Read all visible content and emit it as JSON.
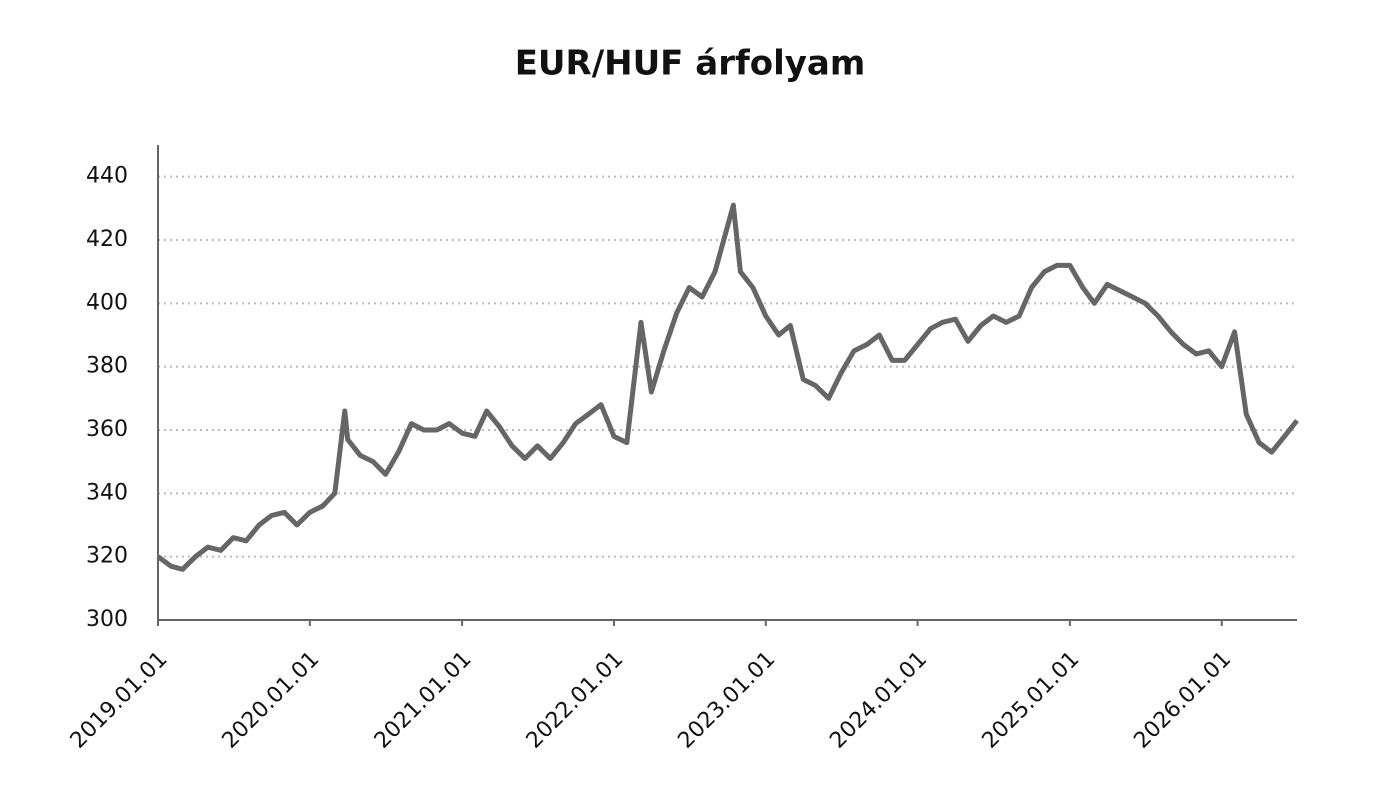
{
  "chart_data": {
    "type": "line",
    "title": "EUR/HUF árfolyam",
    "x": [
      "2019.01.01",
      "2019.02.01",
      "2019.03.01",
      "2019.04.01",
      "2019.05.01",
      "2019.06.01",
      "2019.07.01",
      "2019.08.01",
      "2019.09.01",
      "2019.10.01",
      "2019.11.01",
      "2019.12.01",
      "2020.01.01",
      "2020.02.01",
      "2020.03.01",
      "2020.03.25",
      "2020.04.01",
      "2020.05.01",
      "2020.06.01",
      "2020.07.01",
      "2020.08.01",
      "2020.09.01",
      "2020.10.01",
      "2020.11.01",
      "2020.12.01",
      "2021.01.01",
      "2021.02.01",
      "2021.03.01",
      "2021.04.01",
      "2021.05.01",
      "2021.06.01",
      "2021.07.01",
      "2021.08.01",
      "2021.09.01",
      "2021.10.01",
      "2021.11.01",
      "2021.12.01",
      "2022.01.01",
      "2022.02.01",
      "2022.03.07",
      "2022.04.01",
      "2022.05.01",
      "2022.06.01",
      "2022.07.01",
      "2022.08.01",
      "2022.09.01",
      "2022.10.15",
      "2022.11.01",
      "2022.12.01",
      "2023.01.01",
      "2023.02.01",
      "2023.03.01",
      "2023.04.01",
      "2023.05.01",
      "2023.06.01",
      "2023.07.01",
      "2023.08.01",
      "2023.09.01",
      "2023.10.01",
      "2023.11.01",
      "2023.12.01",
      "2024.01.01",
      "2024.02.01",
      "2024.03.01",
      "2024.04.01",
      "2024.05.01",
      "2024.06.01",
      "2024.07.01",
      "2024.08.01",
      "2024.09.01",
      "2024.10.01",
      "2024.11.01",
      "2024.12.01",
      "2025.01.01",
      "2025.02.01",
      "2025.03.01",
      "2025.04.01",
      "2025.05.01",
      "2025.06.01",
      "2025.07.01",
      "2025.08.01",
      "2025.09.01",
      "2025.10.01",
      "2025.11.01",
      "2025.12.01",
      "2026.01.01",
      "2026.02.01",
      "2026.03.01",
      "2026.04.01",
      "2026.05.01",
      "2026.06.01",
      "2026.07.01"
    ],
    "series": [
      {
        "name": "EUR/HUF",
        "color": "#666666",
        "values": [
          320,
          317,
          316,
          320,
          323,
          322,
          326,
          325,
          330,
          333,
          334,
          330,
          334,
          336,
          340,
          366,
          357,
          352,
          350,
          346,
          353,
          362,
          360,
          360,
          362,
          359,
          358,
          366,
          361,
          355,
          351,
          355,
          351,
          356,
          362,
          365,
          368,
          358,
          356,
          394,
          372,
          385,
          397,
          405,
          402,
          410,
          431,
          410,
          405,
          396,
          390,
          393,
          376,
          374,
          370,
          378,
          385,
          387,
          390,
          382,
          382,
          387,
          392,
          394,
          395,
          388,
          393,
          396,
          394,
          396,
          405,
          410,
          412,
          412,
          405,
          400,
          406,
          404,
          402,
          400,
          396,
          391,
          387,
          384,
          385,
          380,
          391,
          365,
          356,
          353,
          358,
          363
        ]
      }
    ],
    "xlim": [
      "2019.01.01",
      "2026.07.01"
    ],
    "xticks": [
      "2019.01.01",
      "2020.01.01",
      "2021.01.01",
      "2022.01.01",
      "2023.01.01",
      "2024.01.01",
      "2025.01.01",
      "2026.01.01"
    ],
    "ylim": [
      300,
      450
    ],
    "yticks": [
      300,
      320,
      340,
      360,
      380,
      400,
      420,
      440
    ],
    "grid": true
  }
}
